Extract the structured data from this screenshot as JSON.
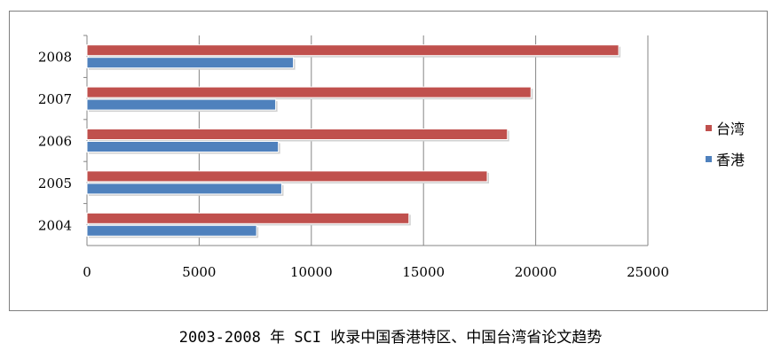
{
  "chart_data": {
    "type": "bar",
    "orientation": "horizontal",
    "title": "2003-2008 年 SCI 收录中国香港特区、中国台湾省论文趋势",
    "categories": [
      "2004",
      "2005",
      "2006",
      "2007",
      "2008"
    ],
    "series": [
      {
        "name": "台湾",
        "color": "#c0504d",
        "values": [
          14350,
          17840,
          18740,
          19790,
          23700
        ]
      },
      {
        "name": "香港",
        "color": "#4f81bd",
        "values": [
          7560,
          8680,
          8530,
          8410,
          9200
        ]
      }
    ],
    "xlim": [
      0,
      25000
    ],
    "xticks": [
      "0",
      "5000",
      "10000",
      "15000",
      "20000",
      "25000"
    ],
    "xlabel": "",
    "ylabel": "",
    "grid": "vertical",
    "legend": "right"
  }
}
